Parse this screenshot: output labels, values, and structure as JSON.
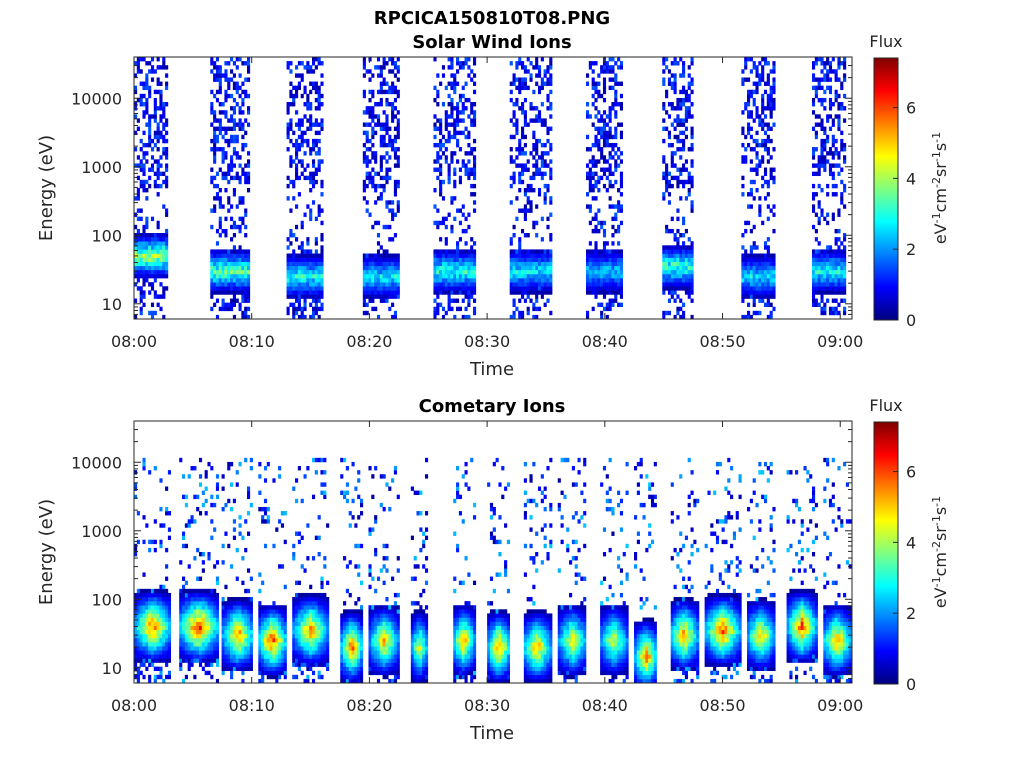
{
  "page_title": "RPCICA150810T08.PNG",
  "chart_data": [
    {
      "type": "heatmap",
      "title": "Solar Wind Ions",
      "xlabel": "Time",
      "ylabel": "Energy (eV)",
      "x_ticks": [
        "08:00",
        "08:10",
        "08:20",
        "08:30",
        "08:40",
        "08:50",
        "09:00"
      ],
      "x_range_minutes": [
        0,
        61
      ],
      "y_scale": "log",
      "y_ticks": [
        "10",
        "100",
        "1000",
        "10000"
      ],
      "y_range": [
        6,
        40000
      ],
      "colorbar": {
        "title": "Flux",
        "unit_label": "eV-1cm-2sr-1s-1",
        "ticks": [
          "0",
          "2",
          "4",
          "6"
        ],
        "range": [
          0,
          7.4
        ],
        "colormap": "jet"
      },
      "bursts": [
        {
          "start": 0.0,
          "end": 3.0,
          "hi_e": 40000,
          "dense_hi": 18000,
          "spot_e": 50,
          "spot_flux": 4.8
        },
        {
          "start": 6.5,
          "end": 9.8,
          "hi_e": 40000,
          "dense_hi": 20000,
          "spot_e": 30,
          "spot_flux": 4.2
        },
        {
          "start": 13.0,
          "end": 16.0,
          "hi_e": 40000,
          "dense_hi": 18000,
          "spot_e": 25,
          "spot_flux": 3.6
        },
        {
          "start": 19.5,
          "end": 22.5,
          "hi_e": 40000,
          "dense_hi": 18000,
          "spot_e": 25,
          "spot_flux": 3.4
        },
        {
          "start": 25.5,
          "end": 29.0,
          "hi_e": 40000,
          "dense_hi": 20000,
          "spot_e": 30,
          "spot_flux": 3.8
        },
        {
          "start": 32.0,
          "end": 35.5,
          "hi_e": 40000,
          "dense_hi": 20000,
          "spot_e": 30,
          "spot_flux": 3.4
        },
        {
          "start": 38.5,
          "end": 41.5,
          "hi_e": 40000,
          "dense_hi": 20000,
          "spot_e": 30,
          "spot_flux": 3.0
        },
        {
          "start": 45.0,
          "end": 47.5,
          "hi_e": 40000,
          "dense_hi": 20000,
          "spot_e": 35,
          "spot_flux": 4.0
        },
        {
          "start": 51.5,
          "end": 54.5,
          "hi_e": 40000,
          "dense_hi": 18000,
          "spot_e": 25,
          "spot_flux": 3.2
        },
        {
          "start": 57.5,
          "end": 60.5,
          "hi_e": 40000,
          "dense_hi": 18000,
          "spot_e": 30,
          "spot_flux": 3.6
        }
      ]
    },
    {
      "type": "heatmap",
      "title": "Cometary Ions",
      "xlabel": "Time",
      "ylabel": "Energy (eV)",
      "x_ticks": [
        "08:00",
        "08:10",
        "08:20",
        "08:30",
        "08:40",
        "08:50",
        "09:00"
      ],
      "x_range_minutes": [
        0,
        61
      ],
      "y_scale": "log",
      "y_ticks": [
        "10",
        "100",
        "1000",
        "10000"
      ],
      "y_range": [
        6,
        40000
      ],
      "colorbar": {
        "title": "Flux",
        "unit_label": "eV-1cm-2sr-1s-1",
        "ticks": [
          "0",
          "2",
          "4",
          "6"
        ],
        "range": [
          0,
          7.4
        ],
        "colormap": "jet"
      },
      "bursts": [
        {
          "start": 0.0,
          "end": 3.2,
          "peak_e": 40,
          "peak_flux": 6.8
        },
        {
          "start": 3.8,
          "end": 7.2,
          "peak_e": 40,
          "peak_flux": 7.2
        },
        {
          "start": 7.5,
          "end": 10.2,
          "peak_e": 30,
          "peak_flux": 6.6
        },
        {
          "start": 10.5,
          "end": 13.0,
          "peak_e": 25,
          "peak_flux": 7.0
        },
        {
          "start": 13.5,
          "end": 16.5,
          "peak_e": 35,
          "peak_flux": 6.4
        },
        {
          "start": 17.5,
          "end": 19.5,
          "peak_e": 20,
          "peak_flux": 6.8
        },
        {
          "start": 20.0,
          "end": 22.5,
          "peak_e": 25,
          "peak_flux": 6.0
        },
        {
          "start": 23.5,
          "end": 25.0,
          "peak_e": 20,
          "peak_flux": 5.4
        },
        {
          "start": 27.0,
          "end": 29.0,
          "peak_e": 25,
          "peak_flux": 6.2
        },
        {
          "start": 30.0,
          "end": 32.0,
          "peak_e": 20,
          "peak_flux": 6.6
        },
        {
          "start": 33.0,
          "end": 35.5,
          "peak_e": 20,
          "peak_flux": 6.2
        },
        {
          "start": 36.0,
          "end": 38.5,
          "peak_e": 25,
          "peak_flux": 5.6
        },
        {
          "start": 39.5,
          "end": 42.0,
          "peak_e": 25,
          "peak_flux": 5.2
        },
        {
          "start": 42.5,
          "end": 44.5,
          "peak_e": 15,
          "peak_flux": 6.8
        },
        {
          "start": 45.5,
          "end": 48.0,
          "peak_e": 30,
          "peak_flux": 6.4
        },
        {
          "start": 48.5,
          "end": 51.5,
          "peak_e": 35,
          "peak_flux": 7.0
        },
        {
          "start": 52.0,
          "end": 54.5,
          "peak_e": 30,
          "peak_flux": 5.8
        },
        {
          "start": 55.5,
          "end": 58.0,
          "peak_e": 40,
          "peak_flux": 7.0
        },
        {
          "start": 58.5,
          "end": 61.0,
          "peak_e": 25,
          "peak_flux": 6.4
        }
      ]
    }
  ]
}
